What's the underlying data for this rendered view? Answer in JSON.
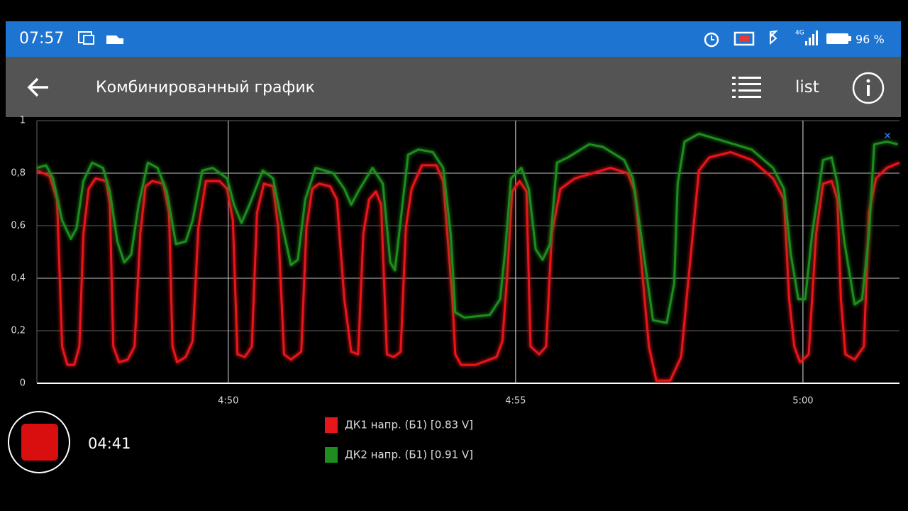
{
  "status_bar": {
    "time": "07:57",
    "network": "4G",
    "battery": "96 %"
  },
  "toolbar": {
    "title": "Комбинированный график",
    "list_button": "list"
  },
  "chart_data": {
    "type": "line",
    "xlim": [
      286.67,
      301.68
    ],
    "xticks": [
      {
        "value": 290,
        "label": "4:50"
      },
      {
        "value": 295,
        "label": "4:55"
      },
      {
        "value": 300,
        "label": "5:00"
      }
    ],
    "ylim": [
      0,
      1
    ],
    "yticks": [
      0,
      {
        "value": 0.2,
        "label": "0,2"
      },
      {
        "value": 0.4,
        "label": "0,4"
      },
      {
        "value": 0.6,
        "label": "0,6"
      },
      {
        "value": 0.8,
        "label": "0,8"
      },
      1
    ],
    "grid": true,
    "series": [
      {
        "name": "ДК1 напр. (Б1) [0.83 V]",
        "color": "#e8161b",
        "x": [
          286.67,
          286.89,
          287.02,
          287.11,
          287.2,
          287.32,
          287.41,
          287.48,
          287.57,
          287.69,
          287.88,
          287.94,
          288.0,
          288.1,
          288.25,
          288.37,
          288.47,
          288.56,
          288.68,
          288.87,
          288.97,
          289.03,
          289.11,
          289.26,
          289.38,
          289.48,
          289.61,
          289.85,
          289.98,
          290.08,
          290.16,
          290.29,
          290.41,
          290.5,
          290.62,
          290.78,
          290.87,
          290.97,
          291.09,
          291.27,
          291.36,
          291.46,
          291.58,
          291.77,
          291.89,
          292.02,
          292.14,
          292.26,
          292.35,
          292.45,
          292.57,
          292.66,
          292.76,
          292.88,
          293.0,
          293.09,
          293.19,
          293.37,
          293.62,
          293.74,
          293.9,
          293.95,
          294.05,
          294.3,
          294.67,
          294.77,
          294.86,
          294.94,
          295.07,
          295.19,
          295.26,
          295.41,
          295.53,
          295.63,
          295.78,
          296.03,
          296.65,
          296.95,
          297.08,
          297.2,
          297.32,
          297.45,
          297.69,
          297.88,
          298.0,
          298.19,
          298.37,
          298.74,
          299.11,
          299.48,
          299.67,
          299.76,
          299.85,
          299.95,
          300.1,
          300.23,
          300.35,
          300.5,
          300.6,
          300.66,
          300.74,
          300.9,
          301.06,
          301.15,
          301.27,
          301.46,
          301.68
        ],
        "values": [
          0.81,
          0.79,
          0.7,
          0.14,
          0.07,
          0.07,
          0.14,
          0.57,
          0.74,
          0.78,
          0.77,
          0.68,
          0.14,
          0.08,
          0.09,
          0.14,
          0.57,
          0.75,
          0.77,
          0.76,
          0.65,
          0.14,
          0.08,
          0.1,
          0.16,
          0.59,
          0.77,
          0.77,
          0.74,
          0.62,
          0.11,
          0.1,
          0.14,
          0.65,
          0.76,
          0.75,
          0.59,
          0.11,
          0.09,
          0.12,
          0.59,
          0.74,
          0.76,
          0.75,
          0.7,
          0.32,
          0.12,
          0.11,
          0.57,
          0.7,
          0.73,
          0.68,
          0.11,
          0.1,
          0.12,
          0.59,
          0.74,
          0.83,
          0.83,
          0.77,
          0.32,
          0.11,
          0.07,
          0.07,
          0.1,
          0.16,
          0.43,
          0.73,
          0.77,
          0.73,
          0.14,
          0.11,
          0.14,
          0.57,
          0.74,
          0.78,
          0.82,
          0.8,
          0.73,
          0.43,
          0.14,
          0.01,
          0.01,
          0.1,
          0.38,
          0.81,
          0.86,
          0.88,
          0.85,
          0.78,
          0.7,
          0.32,
          0.14,
          0.08,
          0.11,
          0.57,
          0.76,
          0.77,
          0.7,
          0.32,
          0.11,
          0.09,
          0.14,
          0.65,
          0.78,
          0.82,
          0.84
        ]
      },
      {
        "name": "ДК2 напр. (Б1) [0.91 V]",
        "color": "#1e8c1e",
        "x": [
          286.67,
          286.83,
          286.95,
          287.11,
          287.26,
          287.36,
          287.48,
          287.63,
          287.82,
          287.94,
          288.07,
          288.19,
          288.31,
          288.44,
          288.6,
          288.77,
          288.93,
          289.09,
          289.26,
          289.38,
          289.55,
          289.73,
          289.98,
          290.1,
          290.23,
          290.37,
          290.6,
          290.78,
          290.97,
          291.09,
          291.21,
          291.34,
          291.52,
          291.83,
          292.02,
          292.14,
          292.26,
          292.51,
          292.69,
          292.82,
          292.9,
          293.0,
          293.13,
          293.31,
          293.56,
          293.74,
          293.87,
          293.95,
          294.11,
          294.55,
          294.73,
          294.82,
          294.92,
          295.1,
          295.23,
          295.35,
          295.47,
          295.6,
          295.72,
          295.91,
          296.28,
          296.52,
          296.89,
          297.04,
          297.2,
          297.39,
          297.63,
          297.76,
          297.82,
          297.94,
          298.19,
          298.5,
          299.11,
          299.48,
          299.67,
          299.79,
          299.92,
          300.04,
          300.16,
          300.35,
          300.5,
          300.6,
          300.72,
          300.9,
          301.03,
          301.15,
          301.24,
          301.46,
          301.65
        ],
        "values": [
          0.82,
          0.83,
          0.78,
          0.62,
          0.55,
          0.59,
          0.77,
          0.84,
          0.82,
          0.73,
          0.54,
          0.46,
          0.49,
          0.68,
          0.84,
          0.82,
          0.73,
          0.53,
          0.54,
          0.62,
          0.81,
          0.82,
          0.78,
          0.68,
          0.61,
          0.68,
          0.81,
          0.78,
          0.57,
          0.45,
          0.47,
          0.7,
          0.82,
          0.8,
          0.74,
          0.68,
          0.73,
          0.82,
          0.76,
          0.46,
          0.43,
          0.62,
          0.87,
          0.89,
          0.88,
          0.82,
          0.57,
          0.27,
          0.25,
          0.26,
          0.32,
          0.51,
          0.78,
          0.82,
          0.74,
          0.51,
          0.47,
          0.53,
          0.84,
          0.86,
          0.91,
          0.9,
          0.85,
          0.78,
          0.54,
          0.24,
          0.23,
          0.38,
          0.76,
          0.92,
          0.95,
          0.93,
          0.89,
          0.82,
          0.74,
          0.49,
          0.32,
          0.32,
          0.57,
          0.85,
          0.86,
          0.76,
          0.54,
          0.3,
          0.32,
          0.57,
          0.91,
          0.92,
          0.91
        ]
      }
    ]
  },
  "recording": {
    "elapsed": "04:41"
  }
}
